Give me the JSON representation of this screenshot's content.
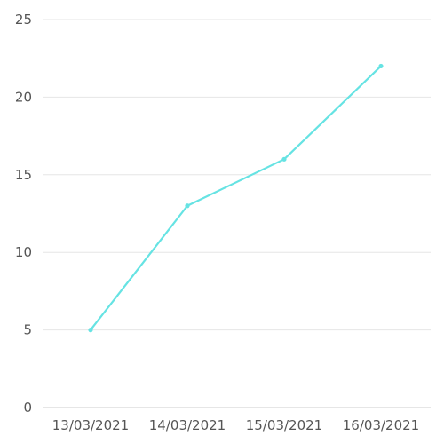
{
  "chart_data": {
    "type": "line",
    "title": "",
    "xlabel": "",
    "ylabel": "",
    "categories": [
      "13/03/2021",
      "14/03/2021",
      "15/03/2021",
      "16/03/2021"
    ],
    "series": [
      {
        "values": [
          5,
          13,
          16,
          22
        ],
        "color": "#66e3e3"
      }
    ],
    "yticks": [
      0,
      5,
      10,
      15,
      20,
      25
    ],
    "ylim": [
      0,
      25
    ],
    "grid": true,
    "legend": "none"
  }
}
